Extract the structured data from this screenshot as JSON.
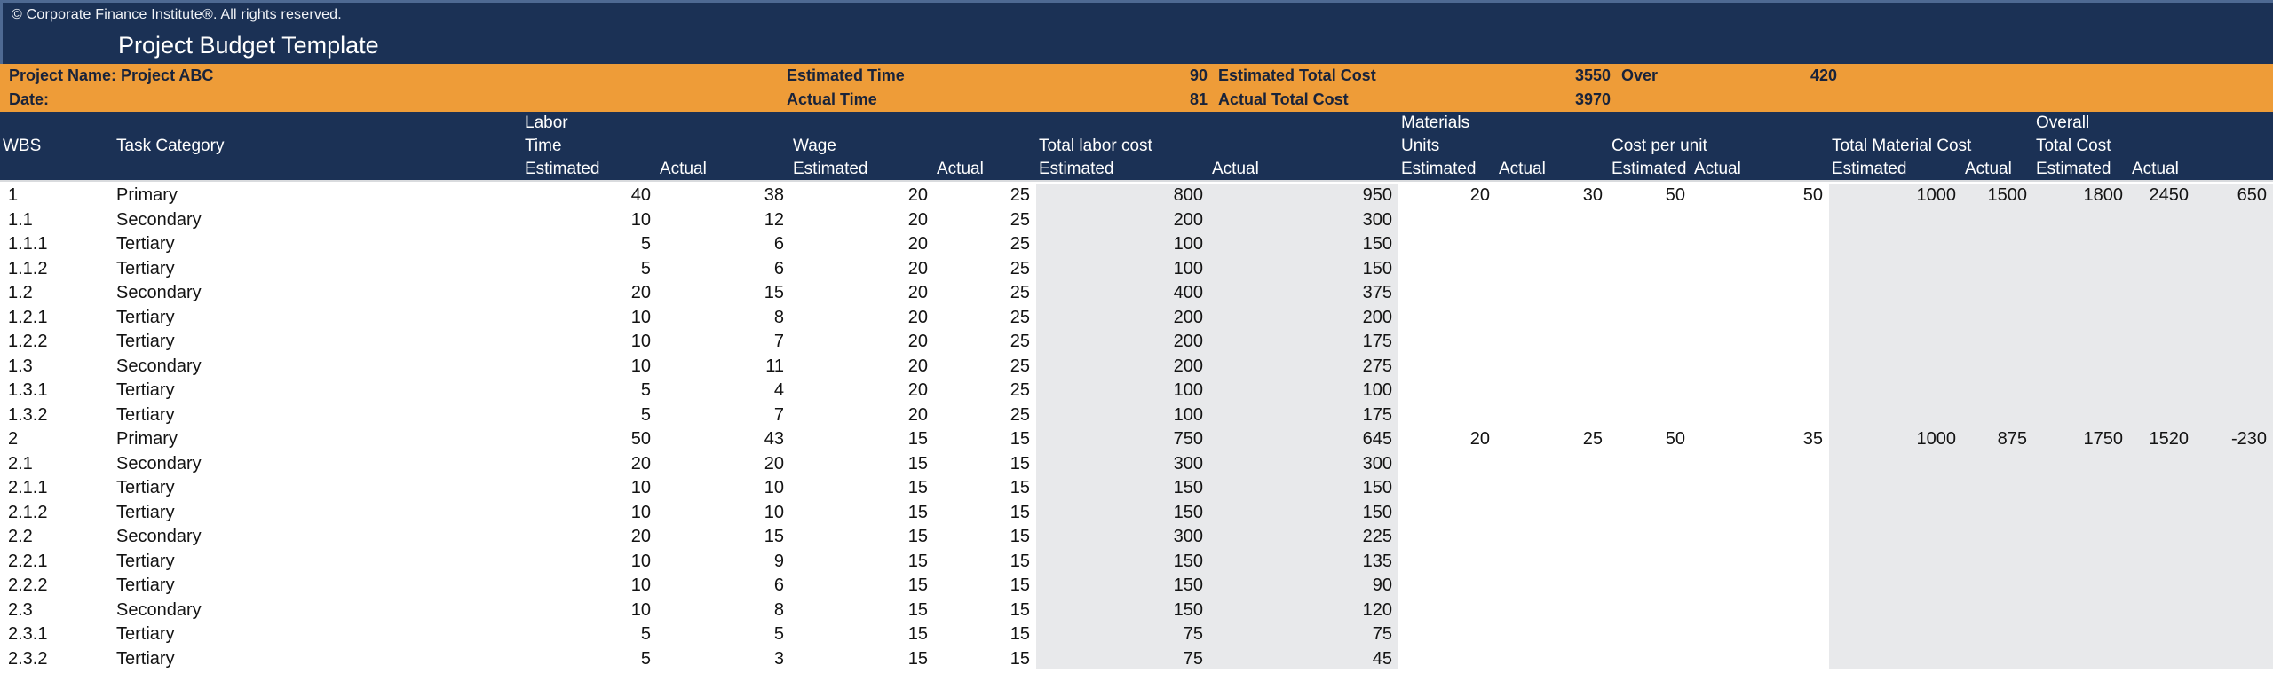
{
  "topbar": {
    "copyright": "© Corporate Finance Institute®. All rights reserved."
  },
  "title": "Project Budget Template",
  "info_band": {
    "row1": {
      "label": "Project Name: Project ABC",
      "time_label": "Estimated Time",
      "time_value": "90",
      "cost_label": "Estimated Total Cost",
      "cost_value": "3550",
      "over_label": "Over",
      "over_value": "420"
    },
    "row2": {
      "label": "Date:",
      "time_label": "Actual Time",
      "time_value": "81",
      "cost_label": "Actual Total Cost",
      "cost_value": "3970"
    }
  },
  "table": {
    "column_keys": [
      "wbs",
      "task-category",
      "labor-time-estimated",
      "labor-time-actual",
      "wage-estimated",
      "wage-actual",
      "total-labor-cost-estimated",
      "total-labor-cost-actual",
      "materials-units-estimated",
      "materials-units-actual",
      "cost-per-unit-estimated",
      "cost-per-unit-actual",
      "total-material-cost-estimated",
      "total-material-cost-actual",
      "overall-total-cost-estimated",
      "overall-total-cost-actual",
      "over-under"
    ],
    "gray_columns": [
      7,
      8,
      13,
      14,
      15,
      16,
      17
    ],
    "header_cells": [
      {
        "col": 1,
        "row": 2,
        "text": "WBS"
      },
      {
        "col": 2,
        "row": 2,
        "text": "Task Category"
      },
      {
        "col": 3,
        "row": 1,
        "text": "Labor"
      },
      {
        "col": 3,
        "row": 2,
        "text": "Time"
      },
      {
        "col": 3,
        "row": 3,
        "text": "Estimated"
      },
      {
        "col": 4,
        "row": 3,
        "text": "Actual"
      },
      {
        "col": 5,
        "row": 2,
        "text": "Wage"
      },
      {
        "col": 5,
        "row": 3,
        "text": "Estimated"
      },
      {
        "col": 6,
        "row": 3,
        "text": "Actual"
      },
      {
        "col": 7,
        "row": 2,
        "text": "Total labor cost"
      },
      {
        "col": 7,
        "row": 3,
        "text": "Estimated"
      },
      {
        "col": 8,
        "row": 3,
        "text": "Actual"
      },
      {
        "col": 9,
        "row": 1,
        "text": "Materials"
      },
      {
        "col": 9,
        "row": 2,
        "text": "Units"
      },
      {
        "col": 9,
        "row": 3,
        "text": "Estimated"
      },
      {
        "col": 10,
        "row": 3,
        "text": "Actual"
      },
      {
        "col": 11,
        "row": 2,
        "text": "Cost per unit"
      },
      {
        "col": 11,
        "row": 3,
        "text": "Estimated"
      },
      {
        "col": 12,
        "row": 3,
        "text": "Actual"
      },
      {
        "col": 13,
        "row": 2,
        "text": "Total Material Cost"
      },
      {
        "col": 13,
        "row": 3,
        "text": "Estimated"
      },
      {
        "col": 14,
        "row": 3,
        "text": "Actual"
      },
      {
        "col": 15,
        "row": 1,
        "text": "Overall"
      },
      {
        "col": 15,
        "row": 2,
        "text": "Total Cost"
      },
      {
        "col": 15,
        "row": 3,
        "text": "Estimated"
      },
      {
        "col": 16,
        "row": 3,
        "text": "Actual"
      }
    ],
    "rows": [
      [
        "1",
        "Primary",
        "40",
        "38",
        "20",
        "25",
        "800",
        "950",
        "20",
        "30",
        "50",
        "50",
        "1000",
        "1500",
        "1800",
        "2450",
        "650"
      ],
      [
        "1.1",
        "Secondary",
        "10",
        "12",
        "20",
        "25",
        "200",
        "300",
        "",
        "",
        "",
        "",
        "",
        "",
        "",
        "",
        ""
      ],
      [
        "1.1.1",
        "Tertiary",
        "5",
        "6",
        "20",
        "25",
        "100",
        "150",
        "",
        "",
        "",
        "",
        "",
        "",
        "",
        "",
        ""
      ],
      [
        "1.1.2",
        "Tertiary",
        "5",
        "6",
        "20",
        "25",
        "100",
        "150",
        "",
        "",
        "",
        "",
        "",
        "",
        "",
        "",
        ""
      ],
      [
        "1.2",
        "Secondary",
        "20",
        "15",
        "20",
        "25",
        "400",
        "375",
        "",
        "",
        "",
        "",
        "",
        "",
        "",
        "",
        ""
      ],
      [
        "1.2.1",
        "Tertiary",
        "10",
        "8",
        "20",
        "25",
        "200",
        "200",
        "",
        "",
        "",
        "",
        "",
        "",
        "",
        "",
        ""
      ],
      [
        "1.2.2",
        "Tertiary",
        "10",
        "7",
        "20",
        "25",
        "200",
        "175",
        "",
        "",
        "",
        "",
        "",
        "",
        "",
        "",
        ""
      ],
      [
        "1.3",
        "Secondary",
        "10",
        "11",
        "20",
        "25",
        "200",
        "275",
        "",
        "",
        "",
        "",
        "",
        "",
        "",
        "",
        ""
      ],
      [
        "1.3.1",
        "Tertiary",
        "5",
        "4",
        "20",
        "25",
        "100",
        "100",
        "",
        "",
        "",
        "",
        "",
        "",
        "",
        "",
        ""
      ],
      [
        "1.3.2",
        "Tertiary",
        "5",
        "7",
        "20",
        "25",
        "100",
        "175",
        "",
        "",
        "",
        "",
        "",
        "",
        "",
        "",
        ""
      ],
      [
        "2",
        "Primary",
        "50",
        "43",
        "15",
        "15",
        "750",
        "645",
        "20",
        "25",
        "50",
        "35",
        "1000",
        "875",
        "1750",
        "1520",
        "-230"
      ],
      [
        "2.1",
        "Secondary",
        "20",
        "20",
        "15",
        "15",
        "300",
        "300",
        "",
        "",
        "",
        "",
        "",
        "",
        "",
        "",
        ""
      ],
      [
        "2.1.1",
        "Tertiary",
        "10",
        "10",
        "15",
        "15",
        "150",
        "150",
        "",
        "",
        "",
        "",
        "",
        "",
        "",
        "",
        ""
      ],
      [
        "2.1.2",
        "Tertiary",
        "10",
        "10",
        "15",
        "15",
        "150",
        "150",
        "",
        "",
        "",
        "",
        "",
        "",
        "",
        "",
        ""
      ],
      [
        "2.2",
        "Secondary",
        "20",
        "15",
        "15",
        "15",
        "300",
        "225",
        "",
        "",
        "",
        "",
        "",
        "",
        "",
        "",
        ""
      ],
      [
        "2.2.1",
        "Tertiary",
        "10",
        "9",
        "15",
        "15",
        "150",
        "135",
        "",
        "",
        "",
        "",
        "",
        "",
        "",
        "",
        ""
      ],
      [
        "2.2.2",
        "Tertiary",
        "10",
        "6",
        "15",
        "15",
        "150",
        "90",
        "",
        "",
        "",
        "",
        "",
        "",
        "",
        "",
        ""
      ],
      [
        "2.3",
        "Secondary",
        "10",
        "8",
        "15",
        "15",
        "150",
        "120",
        "",
        "",
        "",
        "",
        "",
        "",
        "",
        "",
        ""
      ],
      [
        "2.3.1",
        "Tertiary",
        "5",
        "5",
        "15",
        "15",
        "75",
        "75",
        "",
        "",
        "",
        "",
        "",
        "",
        "",
        "",
        ""
      ],
      [
        "2.3.2",
        "Tertiary",
        "5",
        "3",
        "15",
        "15",
        "75",
        "45",
        "",
        "",
        "",
        "",
        "",
        "",
        "",
        "",
        ""
      ]
    ]
  },
  "colors": {
    "navy": "#1b3155",
    "orange": "#ee9c38",
    "gray_column": "#e8e9eb",
    "edge_highlight": "#4e6992"
  }
}
